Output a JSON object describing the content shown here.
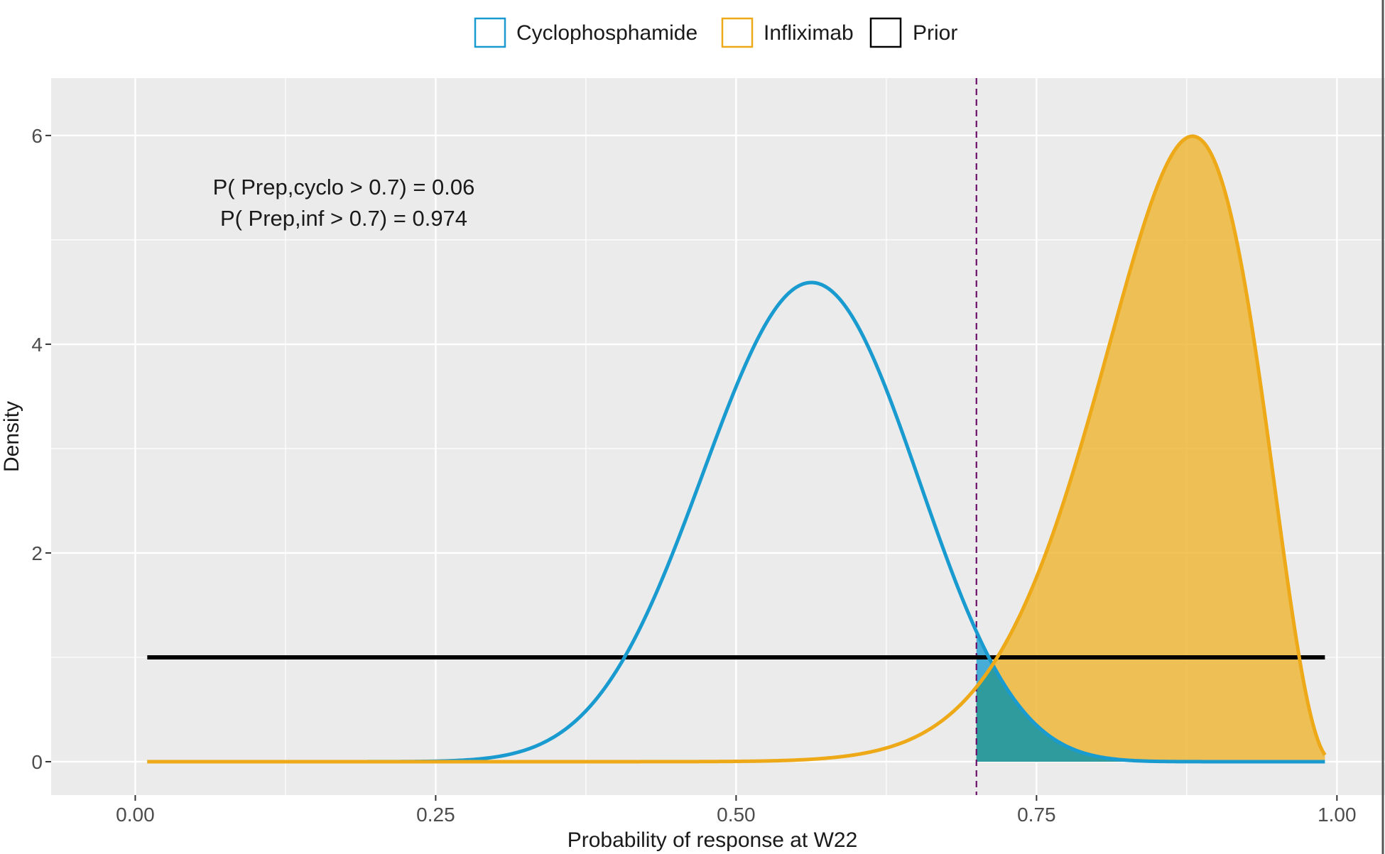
{
  "chart_data": {
    "type": "area",
    "title": "",
    "xlabel": "Probability of response at W22",
    "ylabel": "Density",
    "xlim": [
      -0.07,
      1.04
    ],
    "ylim": [
      -0.32,
      6.55
    ],
    "x_ticks": [
      0,
      0.25,
      0.5,
      0.75,
      1.0
    ],
    "x_tick_labels": [
      "0.00",
      "0.25",
      "0.50",
      "0.75",
      "1.00"
    ],
    "y_ticks": [
      0,
      2,
      4,
      6
    ],
    "y_tick_labels": [
      "0",
      "2",
      "4",
      "6"
    ],
    "grid": true,
    "legend_position": "top",
    "threshold": 0.7,
    "annotations": [
      "P( Prep,cyclo > 0.7) = 0.06",
      "P( Prep,inf > 0.7) = 0.974"
    ],
    "series": [
      {
        "name": "Cyclophosphamide",
        "distribution": "beta",
        "alpha": 18.5,
        "beta": 14.6,
        "color": "#1a9bd0",
        "fill": "#1a9bd0",
        "x_range": [
          0.01,
          0.99
        ]
      },
      {
        "name": "Infliximab",
        "distribution": "beta",
        "alpha": 21.5,
        "beta": 3.8,
        "color": "#eda918",
        "fill": "#eeb42e",
        "x_range": [
          0.01,
          0.99
        ]
      },
      {
        "name": "Prior",
        "distribution": "uniform",
        "value": 1,
        "color": "#000000",
        "x_range": [
          0.01,
          0.99
        ]
      }
    ],
    "colors": {
      "panel": "#ebebeb",
      "grid": "#ffffff",
      "threshold_line": "#6b0f6b",
      "overlap_fill": "#2e9b9b"
    }
  }
}
